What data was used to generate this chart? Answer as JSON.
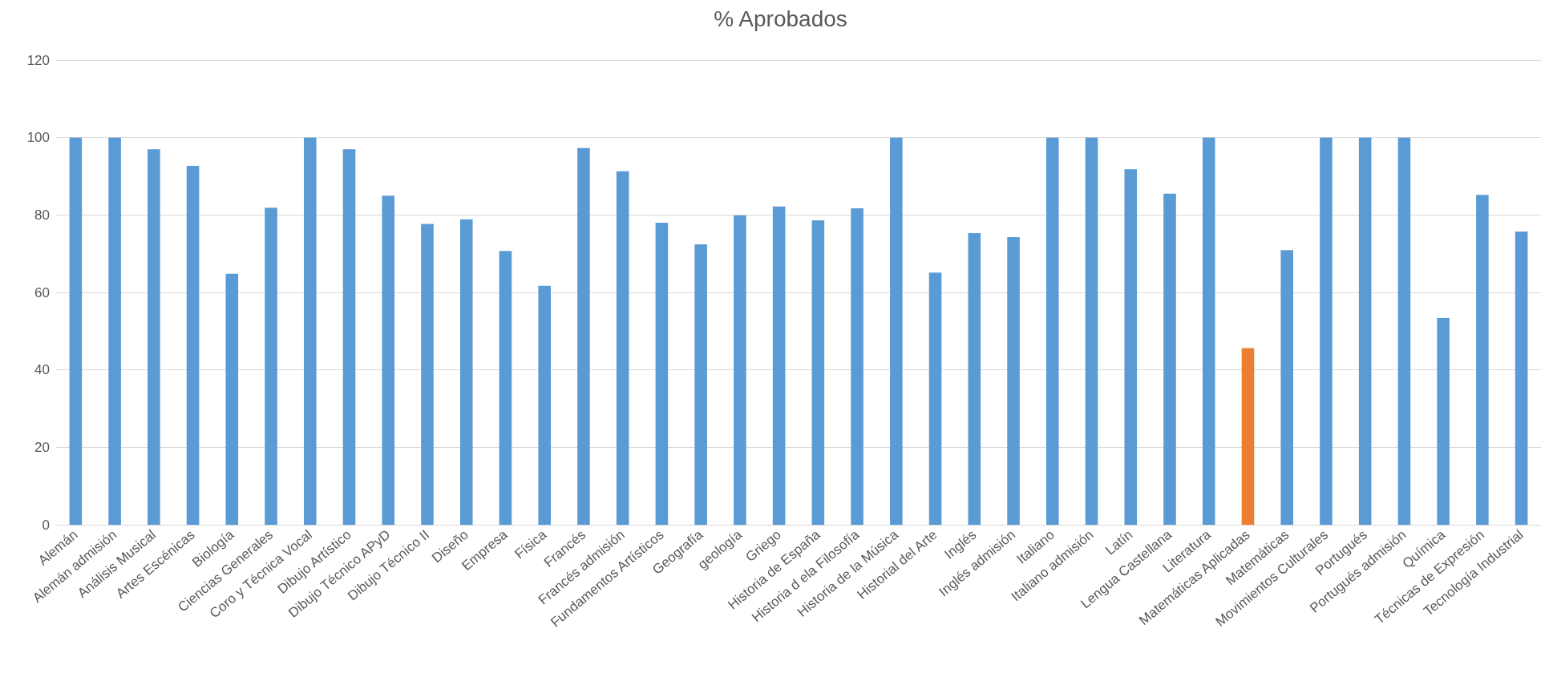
{
  "chart_data": {
    "type": "bar",
    "title": "% Aprobados",
    "categories": [
      "Alemán",
      "Alemán admisión",
      "Análisis Musical",
      "Artes Escénicas",
      "Biología",
      "Ciencias Generales",
      "Coro y Técnica Vocal",
      "Dibujo Artístico",
      "Dibujo Técnico APyD",
      "Dibujo Técnico II",
      "Diseño",
      "Empresa",
      "Física",
      "Francés",
      "Francés admisión",
      "Fundamentos Artísticos",
      "Geografía",
      "geología",
      "Griego",
      "Historia de España",
      "Historia d ela Filosofía",
      "Historia de la Música",
      "Historial del Arte",
      "Inglés",
      "Inglés admisión",
      "Italiano",
      "Italiano admisión",
      "Latín",
      "Lengua Castellana",
      "Literatura",
      "Matemáticas Aplicadas",
      "Matemáticas",
      "Movimientos Culturales",
      "Portugués",
      "Portugués admisión",
      "Química",
      "Técnicas de Expresión",
      "Tecnología Industrial"
    ],
    "values": [
      100,
      100,
      97,
      92.7,
      64.8,
      81.9,
      100,
      97,
      85,
      77.7,
      78.9,
      70.7,
      61.7,
      97.3,
      91.3,
      78,
      72.4,
      79.9,
      82.2,
      78.6,
      81.7,
      100,
      65.1,
      75.3,
      74.3,
      100,
      100,
      91.8,
      85.5,
      100,
      45.6,
      70.9,
      100,
      100,
      100,
      53.4,
      85.2,
      75.7
    ],
    "colors": [
      "#5b9bd5",
      "#5b9bd5",
      "#5b9bd5",
      "#5b9bd5",
      "#5b9bd5",
      "#5b9bd5",
      "#5b9bd5",
      "#5b9bd5",
      "#5b9bd5",
      "#5b9bd5",
      "#5b9bd5",
      "#5b9bd5",
      "#5b9bd5",
      "#5b9bd5",
      "#5b9bd5",
      "#5b9bd5",
      "#5b9bd5",
      "#5b9bd5",
      "#5b9bd5",
      "#5b9bd5",
      "#5b9bd5",
      "#5b9bd5",
      "#5b9bd5",
      "#5b9bd5",
      "#5b9bd5",
      "#5b9bd5",
      "#5b9bd5",
      "#5b9bd5",
      "#5b9bd5",
      "#5b9bd5",
      "#ed7d31",
      "#5b9bd5",
      "#5b9bd5",
      "#5b9bd5",
      "#5b9bd5",
      "#5b9bd5",
      "#5b9bd5",
      "#5b9bd5"
    ],
    "ylim": [
      0,
      120
    ],
    "yticks": [
      0,
      20,
      40,
      60,
      80,
      100,
      120
    ],
    "grid": "y"
  }
}
